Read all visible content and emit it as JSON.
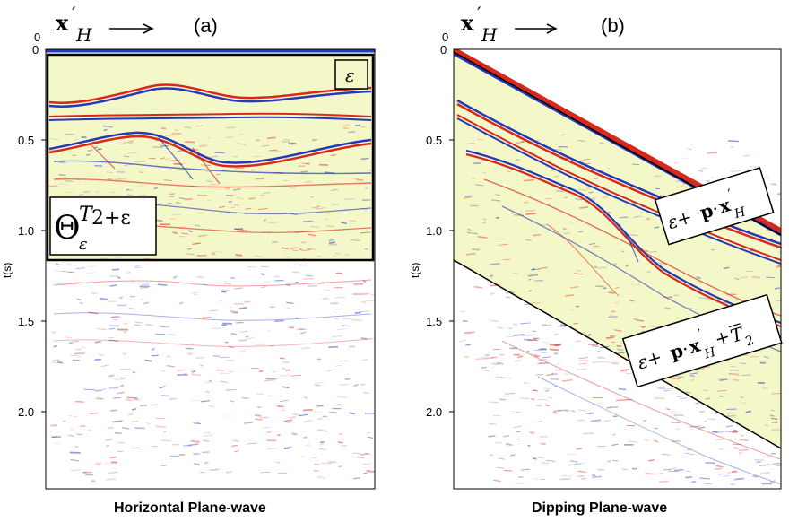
{
  "panel_a": {
    "tag": "(a)",
    "caption": "Horizontal Plane-wave",
    "x_zero": "0",
    "arrow_symbol": "x",
    "arrow_prime": "′",
    "arrow_sub": "H",
    "y_ticks": [
      "0",
      "0.5",
      "1.0",
      "1.5",
      "2.0"
    ],
    "y_label": "t(s)",
    "label_epsilon": "ε",
    "label_theta": "Θ",
    "label_theta_sub": "ε",
    "label_theta_sup_T": "T",
    "label_theta_sup_rest": "2+ε"
  },
  "panel_b": {
    "tag": "(b)",
    "caption": "Dipping Plane-wave",
    "x_zero": "0",
    "arrow_symbol": "x",
    "arrow_prime": "′",
    "arrow_sub": "H",
    "y_ticks": [
      "0",
      "0.5",
      "1.0",
      "1.5",
      "2.0"
    ],
    "y_label": "t(s)",
    "label_top_eps": "ε+",
    "label_top_p": "p",
    "label_top_dot": "·",
    "label_top_x": "x",
    "label_top_prime": "′",
    "label_top_sub": "H",
    "label_bottom_eps": "ε+",
    "label_bottom_p": "p",
    "label_bottom_dot": "·",
    "label_bottom_x": "x",
    "label_bottom_prime": "′",
    "label_bottom_sub": "H",
    "label_bottom_plus": "+",
    "label_bottom_T": "T",
    "label_bottom_T_sub": "2"
  },
  "colors": {
    "window_fill": "#f4f7c7",
    "positive": "#d8281e",
    "negative": "#2637b8",
    "frame": "#000000"
  }
}
